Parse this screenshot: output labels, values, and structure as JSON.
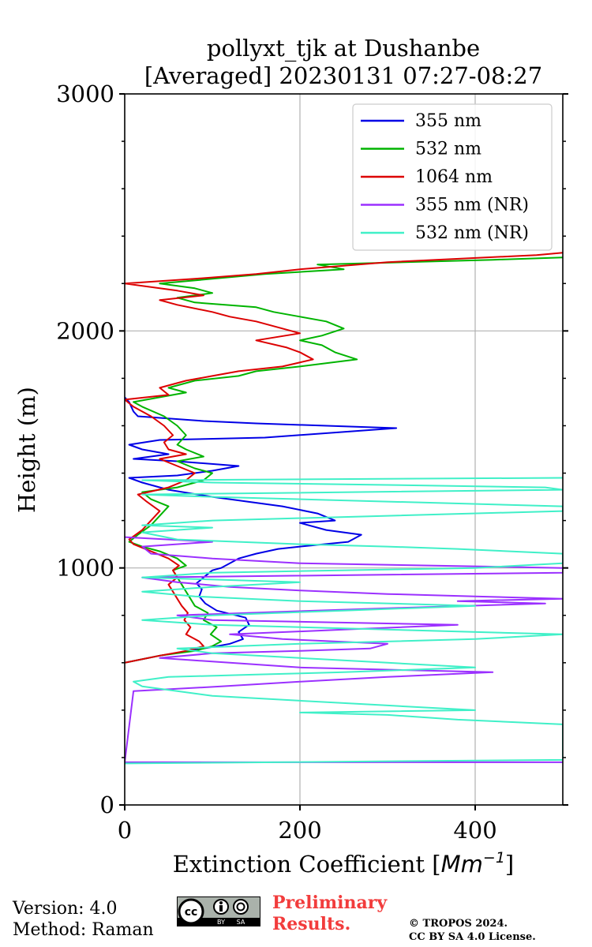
{
  "chart_data": {
    "type": "line",
    "title_line1": "pollyxt_tjk at Dushanbe",
    "title_line2": "[Averaged] 20230131 07:27-08:27",
    "xlabel": "Extinction Coefficient [",
    "xlabel_unit": "Mm",
    "xlabel_exp": "−1",
    "xlabel_end": "]",
    "ylabel": "Height (m)",
    "xlim": [
      0,
      500
    ],
    "ylim": [
      0,
      3000
    ],
    "x_ticks": [
      0,
      200,
      400
    ],
    "x_tick_labels": [
      "0",
      "200",
      "400"
    ],
    "y_ticks": [
      0,
      1000,
      2000,
      3000
    ],
    "y_tick_labels": [
      "0",
      "1000",
      "2000",
      "3000"
    ],
    "grid": true,
    "legend_position": "top-right",
    "series": [
      {
        "name": "355 nm",
        "color": "#0000e6",
        "points": [
          [
            0,
            600
          ],
          [
            40,
            630
          ],
          [
            90,
            660
          ],
          [
            120,
            680
          ],
          [
            135,
            700
          ],
          [
            130,
            730
          ],
          [
            142,
            760
          ],
          [
            138,
            790
          ],
          [
            105,
            820
          ],
          [
            92,
            850
          ],
          [
            85,
            880
          ],
          [
            88,
            910
          ],
          [
            82,
            935
          ],
          [
            90,
            960
          ],
          [
            100,
            990
          ],
          [
            110,
            1000
          ],
          [
            120,
            1020
          ],
          [
            130,
            1040
          ],
          [
            150,
            1060
          ],
          [
            175,
            1080
          ],
          [
            200,
            1090
          ],
          [
            255,
            1110
          ],
          [
            270,
            1140
          ],
          [
            230,
            1160
          ],
          [
            200,
            1190
          ],
          [
            240,
            1200
          ],
          [
            220,
            1230
          ],
          [
            180,
            1260
          ],
          [
            140,
            1280
          ],
          [
            100,
            1300
          ],
          [
            50,
            1330
          ],
          [
            20,
            1360
          ],
          [
            5,
            1380
          ],
          [
            60,
            1390
          ],
          [
            100,
            1410
          ],
          [
            130,
            1430
          ],
          [
            60,
            1450
          ],
          [
            10,
            1460
          ],
          [
            50,
            1480
          ],
          [
            20,
            1500
          ],
          [
            5,
            1520
          ],
          [
            40,
            1540
          ],
          [
            160,
            1550
          ],
          [
            310,
            1590
          ],
          [
            150,
            1610
          ],
          [
            90,
            1620
          ],
          [
            15,
            1640
          ],
          [
            10,
            1660
          ],
          [
            5,
            1700
          ],
          [
            0,
            1720
          ]
        ]
      },
      {
        "name": "532 nm",
        "color": "#00b400",
        "points": [
          [
            0,
            600
          ],
          [
            40,
            630
          ],
          [
            80,
            650
          ],
          [
            100,
            670
          ],
          [
            110,
            690
          ],
          [
            98,
            720
          ],
          [
            105,
            750
          ],
          [
            90,
            780
          ],
          [
            95,
            810
          ],
          [
            80,
            840
          ],
          [
            75,
            870
          ],
          [
            70,
            900
          ],
          [
            65,
            930
          ],
          [
            60,
            960
          ],
          [
            55,
            990
          ],
          [
            70,
            1010
          ],
          [
            60,
            1040
          ],
          [
            40,
            1070
          ],
          [
            20,
            1090
          ],
          [
            5,
            1110
          ],
          [
            15,
            1140
          ],
          [
            30,
            1180
          ],
          [
            40,
            1220
          ],
          [
            50,
            1260
          ],
          [
            30,
            1290
          ],
          [
            20,
            1320
          ],
          [
            60,
            1340
          ],
          [
            90,
            1370
          ],
          [
            100,
            1400
          ],
          [
            80,
            1420
          ],
          [
            60,
            1450
          ],
          [
            90,
            1470
          ],
          [
            70,
            1500
          ],
          [
            60,
            1520
          ],
          [
            70,
            1560
          ],
          [
            60,
            1600
          ],
          [
            45,
            1640
          ],
          [
            20,
            1680
          ],
          [
            10,
            1700
          ],
          [
            70,
            1740
          ],
          [
            50,
            1760
          ],
          [
            80,
            1790
          ],
          [
            130,
            1810
          ],
          [
            150,
            1830
          ],
          [
            200,
            1850
          ],
          [
            265,
            1880
          ],
          [
            240,
            1910
          ],
          [
            225,
            1940
          ],
          [
            200,
            1960
          ],
          [
            225,
            1980
          ],
          [
            250,
            2010
          ],
          [
            230,
            2040
          ],
          [
            200,
            2060
          ],
          [
            170,
            2080
          ],
          [
            150,
            2100
          ],
          [
            80,
            2120
          ],
          [
            60,
            2140
          ],
          [
            100,
            2160
          ],
          [
            80,
            2180
          ],
          [
            40,
            2200
          ],
          [
            100,
            2220
          ],
          [
            160,
            2240
          ],
          [
            250,
            2260
          ],
          [
            220,
            2280
          ],
          [
            420,
            2300
          ],
          [
            500,
            2310
          ]
        ]
      },
      {
        "name": "1064 nm",
        "color": "#dc0000",
        "points": [
          [
            0,
            600
          ],
          [
            40,
            630
          ],
          [
            70,
            650
          ],
          [
            90,
            670
          ],
          [
            85,
            690
          ],
          [
            70,
            720
          ],
          [
            75,
            750
          ],
          [
            68,
            780
          ],
          [
            72,
            810
          ],
          [
            65,
            840
          ],
          [
            60,
            870
          ],
          [
            55,
            900
          ],
          [
            50,
            930
          ],
          [
            60,
            960
          ],
          [
            55,
            990
          ],
          [
            62,
            1010
          ],
          [
            50,
            1040
          ],
          [
            30,
            1070
          ],
          [
            10,
            1100
          ],
          [
            5,
            1120
          ],
          [
            20,
            1160
          ],
          [
            30,
            1200
          ],
          [
            40,
            1240
          ],
          [
            25,
            1280
          ],
          [
            15,
            1310
          ],
          [
            50,
            1340
          ],
          [
            70,
            1370
          ],
          [
            80,
            1400
          ],
          [
            60,
            1430
          ],
          [
            40,
            1460
          ],
          [
            70,
            1480
          ],
          [
            50,
            1500
          ],
          [
            45,
            1530
          ],
          [
            55,
            1560
          ],
          [
            45,
            1600
          ],
          [
            30,
            1640
          ],
          [
            10,
            1680
          ],
          [
            0,
            1710
          ],
          [
            50,
            1730
          ],
          [
            40,
            1760
          ],
          [
            70,
            1790
          ],
          [
            100,
            1810
          ],
          [
            130,
            1830
          ],
          [
            180,
            1850
          ],
          [
            215,
            1880
          ],
          [
            200,
            1910
          ],
          [
            185,
            1930
          ],
          [
            150,
            1960
          ],
          [
            200,
            1990
          ],
          [
            180,
            2010
          ],
          [
            150,
            2040
          ],
          [
            120,
            2060
          ],
          [
            100,
            2080
          ],
          [
            60,
            2110
          ],
          [
            40,
            2130
          ],
          [
            90,
            2150
          ],
          [
            60,
            2170
          ],
          [
            0,
            2200
          ],
          [
            80,
            2220
          ],
          [
            150,
            2240
          ],
          [
            200,
            2260
          ],
          [
            300,
            2290
          ],
          [
            470,
            2320
          ],
          [
            500,
            2330
          ]
        ]
      },
      {
        "name": "355 nm (NR)",
        "color": "#9b30ff",
        "points": [
          [
            500,
            180
          ],
          [
            0,
            180
          ],
          [
            10,
            480
          ],
          [
            110,
            500
          ],
          [
            200,
            520
          ],
          [
            300,
            540
          ],
          [
            420,
            560
          ],
          [
            200,
            580
          ],
          [
            120,
            600
          ],
          [
            40,
            620
          ],
          [
            100,
            640
          ],
          [
            200,
            650
          ],
          [
            280,
            660
          ],
          [
            300,
            680
          ],
          [
            180,
            700
          ],
          [
            120,
            720
          ],
          [
            250,
            740
          ],
          [
            380,
            760
          ],
          [
            100,
            780
          ],
          [
            60,
            800
          ],
          [
            300,
            830
          ],
          [
            480,
            850
          ],
          [
            380,
            860
          ],
          [
            500,
            870
          ],
          [
            400,
            880
          ],
          [
            300,
            890
          ],
          [
            200,
            905
          ],
          [
            120,
            920
          ],
          [
            60,
            940
          ],
          [
            20,
            960
          ],
          [
            500,
            980
          ],
          [
            500,
            1000
          ],
          [
            200,
            1020
          ],
          [
            100,
            1040
          ],
          [
            30,
            1060
          ],
          [
            20,
            1090
          ],
          [
            100,
            1110
          ],
          [
            0,
            1130
          ]
        ]
      },
      {
        "name": "532 nm (NR)",
        "color": "#40f0c8",
        "points": [
          [
            0,
            175
          ],
          [
            500,
            190
          ],
          [
            500,
            340
          ],
          [
            380,
            360
          ],
          [
            300,
            380
          ],
          [
            200,
            390
          ],
          [
            400,
            400
          ],
          [
            300,
            420
          ],
          [
            200,
            440
          ],
          [
            100,
            460
          ],
          [
            60,
            480
          ],
          [
            20,
            500
          ],
          [
            10,
            520
          ],
          [
            50,
            540
          ],
          [
            150,
            550
          ],
          [
            250,
            560
          ],
          [
            400,
            580
          ],
          [
            300,
            600
          ],
          [
            200,
            620
          ],
          [
            100,
            640
          ],
          [
            60,
            660
          ],
          [
            200,
            680
          ],
          [
            400,
            700
          ],
          [
            500,
            720
          ],
          [
            300,
            740
          ],
          [
            100,
            760
          ],
          [
            20,
            780
          ],
          [
            100,
            800
          ],
          [
            250,
            820
          ],
          [
            400,
            840
          ],
          [
            200,
            860
          ],
          [
            80,
            880
          ],
          [
            20,
            900
          ],
          [
            100,
            920
          ],
          [
            200,
            940
          ],
          [
            20,
            960
          ],
          [
            100,
            980
          ],
          [
            400,
            1000
          ],
          [
            500,
            1020
          ],
          [
            500,
            1060
          ],
          [
            380,
            1080
          ],
          [
            300,
            1090
          ],
          [
            200,
            1100
          ],
          [
            60,
            1120
          ],
          [
            20,
            1150
          ],
          [
            100,
            1170
          ],
          [
            20,
            1180
          ],
          [
            100,
            1200
          ],
          [
            300,
            1220
          ],
          [
            500,
            1240
          ],
          [
            500,
            1260
          ],
          [
            300,
            1280
          ],
          [
            100,
            1300
          ],
          [
            20,
            1310
          ],
          [
            500,
            1330
          ],
          [
            480,
            1340
          ],
          [
            300,
            1350
          ],
          [
            100,
            1360
          ],
          [
            20,
            1370
          ],
          [
            500,
            1380
          ]
        ]
      }
    ]
  },
  "footer": {
    "version": "Version: 4.0",
    "method": "Method: Raman",
    "preliminary_line1": "Preliminary",
    "preliminary_line2": "Results.",
    "copyright_line1": "© TROPOS 2024.",
    "copyright_line2": "CC BY SA 4.0 License.",
    "cc_label_by": "BY",
    "cc_label_sa": "SA"
  }
}
